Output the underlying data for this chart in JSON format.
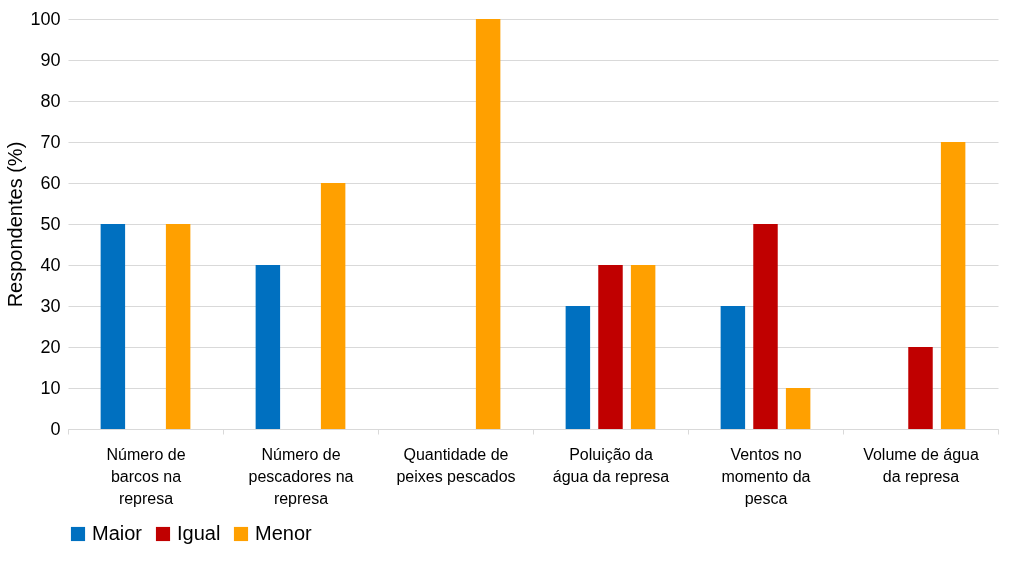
{
  "chart_data": {
    "type": "bar",
    "categories": [
      "Número de barcos na represa",
      "Número de pescadores na represa",
      "Quantidade de peixes pescados",
      "Poluição da água da represa",
      "Ventos no momento da pesca",
      "Volume de água da represa"
    ],
    "series": [
      {
        "name": "Maior",
        "color": "#0070c0",
        "values": [
          50,
          40,
          0,
          30,
          30,
          0
        ]
      },
      {
        "name": "Igual",
        "color": "#c00000",
        "values": [
          0,
          0,
          0,
          40,
          50,
          20
        ]
      },
      {
        "name": "Menor",
        "color": "#ffa000",
        "values": [
          50,
          60,
          100,
          40,
          10,
          70
        ]
      }
    ],
    "ylabel": "Respondentes (%)",
    "ylim": [
      0,
      100
    ],
    "yticks": [
      0,
      10,
      20,
      30,
      40,
      50,
      60,
      70,
      80,
      90,
      100
    ],
    "grid": "y",
    "legend": "bottom"
  }
}
